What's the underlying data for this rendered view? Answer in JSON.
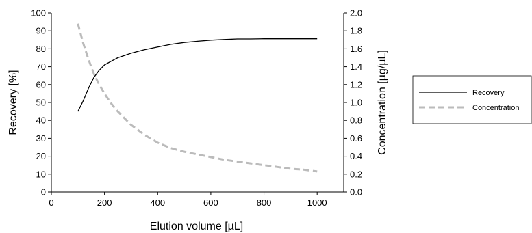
{
  "chart_data": {
    "type": "line",
    "xlabel": "Elution volume [µL]",
    "ylabel": "Recovery [%]",
    "y2label": "Concentration [µg/µL]",
    "xlim": [
      0,
      1100
    ],
    "ylim": [
      0,
      100
    ],
    "y2lim": [
      0,
      2.0
    ],
    "x_ticks": [
      "0",
      "200",
      "400",
      "600",
      "800",
      "1000"
    ],
    "y_ticks": [
      "0",
      "10",
      "20",
      "30",
      "40",
      "50",
      "60",
      "70",
      "80",
      "90",
      "100"
    ],
    "y2_ticks": [
      "0.0",
      "0.2",
      "0.4",
      "0.6",
      "0.8",
      "1.0",
      "1.2",
      "1.4",
      "1.6",
      "1.8",
      "2.0"
    ],
    "grid": false,
    "legend_position": "right",
    "series": [
      {
        "name": "Recovery",
        "axis": "left",
        "color": "#000000",
        "style": "solid",
        "x": [
          100,
          120,
          140,
          160,
          180,
          200,
          225,
          250,
          300,
          350,
          400,
          450,
          500,
          550,
          600,
          650,
          700,
          750,
          800,
          850,
          900,
          950,
          1000
        ],
        "y": [
          45,
          51,
          58,
          64,
          68,
          71,
          73,
          75,
          77.5,
          79.5,
          81,
          82.5,
          83.5,
          84.2,
          84.8,
          85.2,
          85.5,
          85.5,
          85.6,
          85.6,
          85.6,
          85.6,
          85.6
        ]
      },
      {
        "name": "Concentration",
        "axis": "right",
        "color": "#bbbbbb",
        "style": "dashed",
        "x": [
          100,
          120,
          140,
          160,
          180,
          200,
          225,
          250,
          300,
          350,
          400,
          450,
          500,
          550,
          600,
          650,
          700,
          750,
          800,
          850,
          900,
          950,
          1000
        ],
        "y": [
          1.88,
          1.66,
          1.48,
          1.32,
          1.2,
          1.1,
          0.99,
          0.9,
          0.75,
          0.64,
          0.55,
          0.49,
          0.45,
          0.42,
          0.39,
          0.36,
          0.34,
          0.32,
          0.3,
          0.28,
          0.26,
          0.25,
          0.23
        ]
      }
    ]
  }
}
